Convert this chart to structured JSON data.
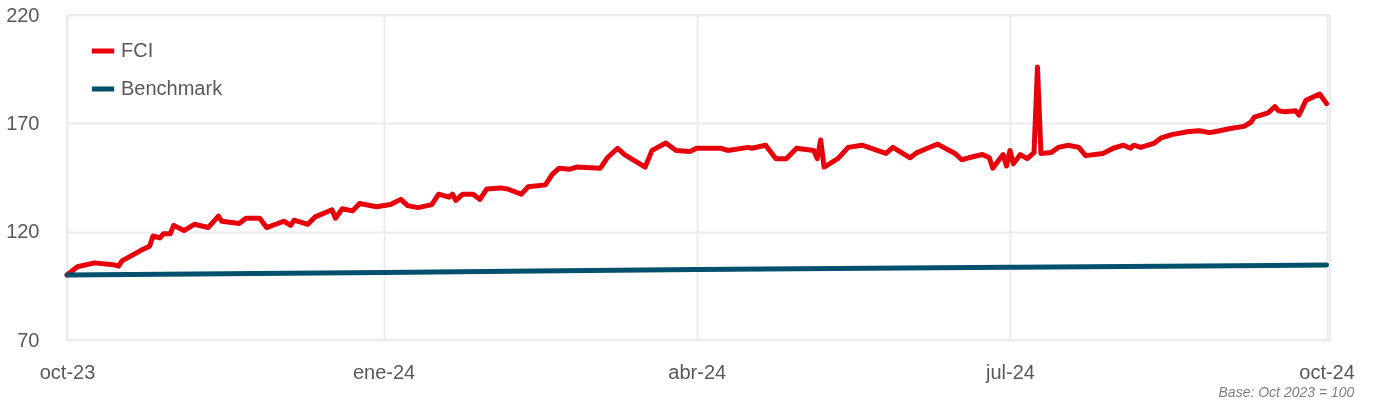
{
  "chart_data": {
    "type": "line",
    "x": [
      "2023-10-01",
      "2023-10-04",
      "2023-10-09",
      "2023-10-15",
      "2023-10-16",
      "2023-10-17",
      "2023-10-23",
      "2023-10-25",
      "2023-10-26",
      "2023-10-28",
      "2023-10-29",
      "2023-10-31",
      "2023-11-01",
      "2023-11-04",
      "2023-11-07",
      "2023-11-11",
      "2023-11-14",
      "2023-11-15",
      "2023-11-20",
      "2023-11-22",
      "2023-11-26",
      "2023-11-28",
      "2023-12-03",
      "2023-12-05",
      "2023-12-06",
      "2023-12-10",
      "2023-12-12",
      "2023-12-17",
      "2023-12-18",
      "2023-12-20",
      "2023-12-23",
      "2023-12-25",
      "2023-12-30",
      "2024-01-03",
      "2024-01-06",
      "2024-01-08",
      "2024-01-11",
      "2024-01-15",
      "2024-01-17",
      "2024-01-20",
      "2024-01-21",
      "2024-01-22",
      "2024-01-24",
      "2024-01-27",
      "2024-01-29",
      "2024-01-31",
      "2024-02-04",
      "2024-02-06",
      "2024-02-10",
      "2024-02-12",
      "2024-02-17",
      "2024-02-19",
      "2024-02-21",
      "2024-02-24",
      "2024-02-26",
      "2024-03-04",
      "2024-03-06",
      "2024-03-09",
      "2024-03-11",
      "2024-03-17",
      "2024-03-19",
      "2024-03-23",
      "2024-03-26",
      "2024-03-30",
      "2024-04-01",
      "2024-04-08",
      "2024-04-10",
      "2024-04-16",
      "2024-04-17",
      "2024-04-21",
      "2024-04-24",
      "2024-04-27",
      "2024-04-30",
      "2024-05-05",
      "2024-05-06",
      "2024-05-07",
      "2024-05-08",
      "2024-05-12",
      "2024-05-15",
      "2024-05-19",
      "2024-05-26",
      "2024-05-28",
      "2024-06-02",
      "2024-06-04",
      "2024-06-07",
      "2024-06-10",
      "2024-06-15",
      "2024-06-17",
      "2024-06-19",
      "2024-06-23",
      "2024-06-25",
      "2024-06-26",
      "2024-06-29",
      "2024-06-30",
      "2024-07-01",
      "2024-07-02",
      "2024-07-04",
      "2024-07-06",
      "2024-07-08",
      "2024-07-09",
      "2024-07-10",
      "2024-07-13",
      "2024-07-15",
      "2024-07-18",
      "2024-07-21",
      "2024-07-23",
      "2024-07-28",
      "2024-07-31",
      "2024-08-03",
      "2024-08-05",
      "2024-08-06",
      "2024-08-08",
      "2024-08-12",
      "2024-08-14",
      "2024-08-17",
      "2024-08-22",
      "2024-08-25",
      "2024-08-28",
      "2024-08-31",
      "2024-09-03",
      "2024-09-07",
      "2024-09-09",
      "2024-09-10",
      "2024-09-14",
      "2024-09-16",
      "2024-09-17",
      "2024-09-19",
      "2024-09-22",
      "2024-09-23",
      "2024-09-25",
      "2024-09-29",
      "2024-10-01"
    ],
    "series": [
      {
        "name": "FCI",
        "color": "#e8000b",
        "values": [
          100.0,
          103.8,
          105.6,
          104.6,
          104.1,
          106.5,
          111.8,
          113.3,
          118.0,
          117.1,
          119.0,
          119.0,
          122.9,
          120.5,
          123.4,
          121.9,
          127.2,
          124.8,
          123.8,
          126.2,
          126.2,
          121.9,
          124.8,
          122.9,
          125.3,
          123.4,
          126.7,
          130.1,
          126.2,
          130.6,
          129.6,
          133.0,
          131.5,
          132.5,
          134.9,
          132.0,
          131.1,
          132.5,
          137.3,
          135.9,
          137.3,
          134.4,
          137.3,
          137.3,
          134.9,
          139.7,
          140.2,
          139.7,
          137.3,
          140.7,
          141.6,
          146.4,
          149.3,
          148.8,
          149.8,
          149.3,
          154.1,
          158.5,
          155.6,
          149.8,
          157.5,
          160.9,
          157.5,
          157.0,
          158.5,
          158.5,
          157.5,
          158.9,
          158.5,
          159.9,
          153.7,
          153.7,
          158.5,
          157.5,
          153.7,
          162.3,
          149.8,
          153.7,
          158.9,
          159.9,
          156.1,
          158.9,
          154.1,
          156.5,
          158.5,
          160.4,
          156.1,
          153.2,
          154.1,
          155.6,
          154.1,
          149.3,
          155.6,
          150.3,
          157.5,
          151.3,
          155.6,
          153.7,
          156.5,
          196.0,
          156.1,
          156.5,
          158.9,
          159.9,
          158.9,
          155.1,
          156.1,
          158.5,
          159.9,
          158.5,
          159.9,
          158.9,
          160.9,
          163.3,
          164.8,
          166.2,
          166.6,
          165.7,
          166.6,
          167.6,
          168.6,
          170.5,
          172.9,
          174.8,
          177.7,
          175.8,
          175.3,
          175.8,
          173.8,
          180.6,
          183.5,
          179.1
        ]
      },
      {
        "name": "Benchmark",
        "color": "#00506e",
        "x": [
          "2023-10-01",
          "2024-01-01",
          "2024-04-01",
          "2024-07-01",
          "2024-10-01"
        ],
        "values": [
          100.0,
          101.2,
          102.5,
          103.6,
          104.6
        ]
      }
    ],
    "xlim": [
      "2023-10-01",
      "2024-10-02"
    ],
    "xticks": [
      {
        "value": "2023-10-01",
        "label": "oct-23"
      },
      {
        "value": "2024-01-01",
        "label": "ene-24"
      },
      {
        "value": "2024-04-01",
        "label": "abr-24"
      },
      {
        "value": "2024-07-01",
        "label": "jul-24"
      },
      {
        "value": "2024-10-01",
        "label": "oct-24"
      }
    ],
    "ylim": [
      70,
      220
    ],
    "yticks": [
      70,
      120,
      170,
      220
    ],
    "grid": true,
    "legend": "top left",
    "line_style": "solid",
    "marker": "none",
    "annotations": [
      "Base: Oct 2023 = 100"
    ]
  }
}
